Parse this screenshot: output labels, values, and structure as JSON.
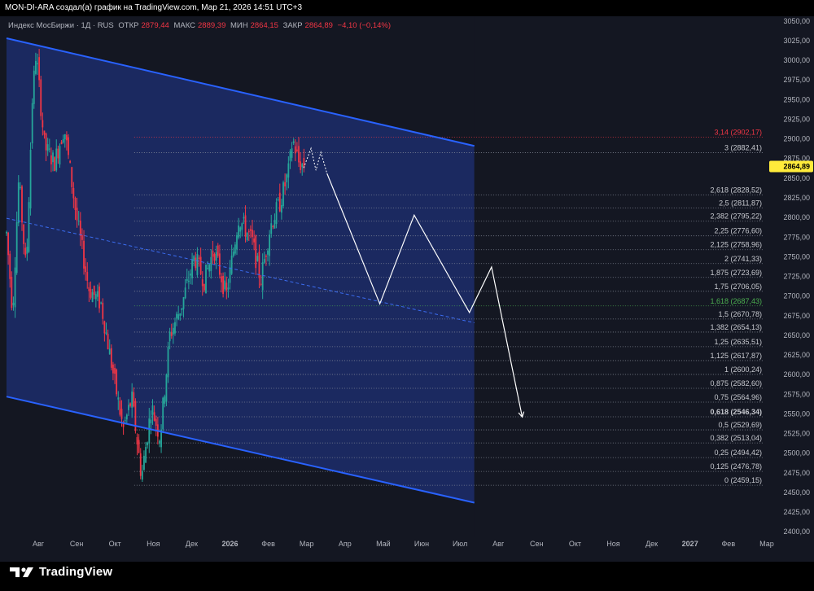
{
  "caption": "MON-DI-ARA создал(а) график на TradingView.com, Мар 21, 2026 14:51 UTC+3",
  "legend": {
    "symbol": "Индекс МосБиржи · 1Д · RUS",
    "open_label": "ОТКР",
    "open": "2879,44",
    "high_label": "МАКС",
    "high": "2889,39",
    "low_label": "МИН",
    "low": "2864,15",
    "close_label": "ЗАКР",
    "close": "2864,89",
    "change": "−4,10 (−0,14%)"
  },
  "brand": "TradingView",
  "colors": {
    "background": "#141722",
    "up": "#26a69a",
    "down": "#f23645",
    "channel_line": "#2962ff",
    "channel_fill": "#1c2d6b",
    "projection": "#ffffff",
    "price_tag": "#ffeb3b"
  },
  "chart_data": {
    "type": "candlestick",
    "x_ticks": [
      "Авг",
      "Сен",
      "Окт",
      "Ноя",
      "Дек",
      "2026",
      "Фев",
      "Мар",
      "Апр",
      "Май",
      "Июн",
      "Июл",
      "Авг",
      "Сен",
      "Окт",
      "Ноя",
      "Дек",
      "2027",
      "Фев",
      "Мар"
    ],
    "y_ticks": [
      "3050,00",
      "3025,00",
      "3000,00",
      "2975,00",
      "2950,00",
      "2925,00",
      "2900,00",
      "2875,00",
      "2850,00",
      "2825,00",
      "2800,00",
      "2775,00",
      "2750,00",
      "2725,00",
      "2700,00",
      "2675,00",
      "2650,00",
      "2625,00",
      "2600,00",
      "2575,00",
      "2550,00",
      "2525,00",
      "2500,00",
      "2475,00",
      "2450,00",
      "2425,00",
      "2400,00"
    ],
    "y_range": [
      2393,
      3056
    ],
    "last_price": "2864,89",
    "price_path": [
      [
        "2025-07-20",
        2780
      ],
      [
        "2025-07-25",
        2680
      ],
      [
        "2025-07-30",
        2850
      ],
      [
        "2025-08-05",
        2730
      ],
      [
        "2025-08-10",
        2950
      ],
      [
        "2025-08-13",
        3010
      ],
      [
        "2025-08-20",
        2890
      ],
      [
        "2025-08-28",
        2870
      ],
      [
        "2025-09-05",
        2915
      ],
      [
        "2025-09-15",
        2800
      ],
      [
        "2025-09-25",
        2710
      ],
      [
        "2025-10-05",
        2690
      ],
      [
        "2025-10-15",
        2600
      ],
      [
        "2025-10-23",
        2530
      ],
      [
        "2025-10-30",
        2570
      ],
      [
        "2025-11-07",
        2470
      ],
      [
        "2025-11-15",
        2560
      ],
      [
        "2025-11-22",
        2520
      ],
      [
        "2025-11-30",
        2650
      ],
      [
        "2025-12-10",
        2690
      ],
      [
        "2025-12-20",
        2750
      ],
      [
        "2025-12-28",
        2720
      ],
      [
        "2026-01-05",
        2760
      ],
      [
        "2026-01-15",
        2700
      ],
      [
        "2026-01-25",
        2800
      ],
      [
        "2026-02-05",
        2770
      ],
      [
        "2026-02-12",
        2720
      ],
      [
        "2026-02-20",
        2790
      ],
      [
        "2026-02-28",
        2820
      ],
      [
        "2026-03-07",
        2860
      ],
      [
        "2026-03-10",
        2900
      ],
      [
        "2026-03-15",
        2870
      ],
      [
        "2026-03-20",
        2865
      ]
    ],
    "fib_levels": [
      {
        "ratio": "0",
        "price": "2459,15",
        "value": 2459.15
      },
      {
        "ratio": "0,125",
        "price": "2476,78",
        "value": 2476.78
      },
      {
        "ratio": "0,25",
        "price": "2494,42",
        "value": 2494.42
      },
      {
        "ratio": "0,382",
        "price": "2513,04",
        "value": 2513.04
      },
      {
        "ratio": "0,5",
        "price": "2529,69",
        "value": 2529.69
      },
      {
        "ratio": "0,618",
        "price": "2546,34",
        "value": 2546.34,
        "emphasis": true
      },
      {
        "ratio": "0,75",
        "price": "2564,96",
        "value": 2564.96
      },
      {
        "ratio": "0,875",
        "price": "2582,60",
        "value": 2582.6
      },
      {
        "ratio": "1",
        "price": "2600,24",
        "value": 2600.24
      },
      {
        "ratio": "1,125",
        "price": "2617,87",
        "value": 2617.87
      },
      {
        "ratio": "1,25",
        "price": "2635,51",
        "value": 2635.51
      },
      {
        "ratio": "1,382",
        "price": "2654,13",
        "value": 2654.13
      },
      {
        "ratio": "1,5",
        "price": "2670,78",
        "value": 2670.78
      },
      {
        "ratio": "1,618",
        "price": "2687,43",
        "value": 2687.43,
        "color": "#4caf50"
      },
      {
        "ratio": "1,75",
        "price": "2706,05",
        "value": 2706.05
      },
      {
        "ratio": "1,875",
        "price": "2723,69",
        "value": 2723.69
      },
      {
        "ratio": "2",
        "price": "2741,33",
        "value": 2741.33
      },
      {
        "ratio": "2,125",
        "price": "2758,96",
        "value": 2758.96
      },
      {
        "ratio": "2,25",
        "price": "2776,60",
        "value": 2776.6
      },
      {
        "ratio": "2,382",
        "price": "2795,22",
        "value": 2795.22
      },
      {
        "ratio": "2,5",
        "price": "2811,87",
        "value": 2811.87
      },
      {
        "ratio": "2,618",
        "price": "2828,52",
        "value": 2828.52
      },
      {
        "ratio": "3",
        "price": "2882,41",
        "value": 2882.41
      },
      {
        "ratio": "3,14",
        "price": "2902,17",
        "value": 2902.17,
        "color": "#f23645"
      }
    ],
    "channel": {
      "upper": [
        [
          "2025-07-20",
          3028
        ],
        [
          "2026-08-05",
          2891
        ]
      ],
      "lower": [
        [
          "2025-07-20",
          2572
        ],
        [
          "2026-08-05",
          2437
        ]
      ],
      "midline": [
        [
          "2025-07-20",
          2799
        ],
        [
          "2026-08-05",
          2666
        ]
      ]
    },
    "projection_near": [
      [
        "2026-03-19",
        2863
      ],
      [
        "2026-03-25",
        2888
      ],
      [
        "2026-03-29",
        2860
      ],
      [
        "2026-04-02",
        2883
      ],
      [
        "2026-04-07",
        2856
      ]
    ],
    "projection": [
      [
        "2026-04-07",
        2856
      ],
      [
        "2026-05-20",
        2690
      ],
      [
        "2026-06-17",
        2803
      ],
      [
        "2026-08-01",
        2679
      ],
      [
        "2026-08-19",
        2737
      ],
      [
        "2026-09-13",
        2546
      ]
    ]
  }
}
